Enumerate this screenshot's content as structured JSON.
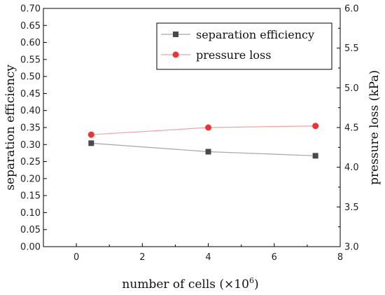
{
  "chart_data": {
    "type": "line",
    "xlabel_text": "number of cells (×10",
    "xlabel_exponent": "6",
    "xlabel_close": ")",
    "ylabel_left": "separation efficiency",
    "ylabel_right": "pressure loss (kPa)",
    "xlim": [
      -1,
      8
    ],
    "ylim_left": [
      0.0,
      0.7
    ],
    "ylim_right": [
      3.0,
      6.0
    ],
    "x_ticks": [
      "0",
      "2",
      "4",
      "6",
      "8"
    ],
    "y_left_ticks": [
      "0.00",
      "0.05",
      "0.10",
      "0.15",
      "0.20",
      "0.25",
      "0.30",
      "0.35",
      "0.40",
      "0.45",
      "0.50",
      "0.55",
      "0.60",
      "0.65",
      "0.70"
    ],
    "y_right_ticks": [
      "3.0",
      "3.5",
      "4.0",
      "4.5",
      "5.0",
      "5.5",
      "6.0"
    ],
    "legend_position": "top-right",
    "series": [
      {
        "name": "separation efficiency",
        "axis": "left",
        "marker": "square",
        "marker_color": "#4a4a4a",
        "line_color": "#a6a6a6",
        "x": [
          0.45,
          4.0,
          7.25
        ],
        "values": [
          0.304,
          0.279,
          0.267
        ]
      },
      {
        "name": "pressure loss",
        "axis": "right",
        "marker": "circle",
        "marker_color": "#ee3333",
        "line_color": "#f4a3a3",
        "x": [
          0.45,
          4.0,
          7.25
        ],
        "values": [
          4.41,
          4.5,
          4.52
        ]
      }
    ]
  }
}
